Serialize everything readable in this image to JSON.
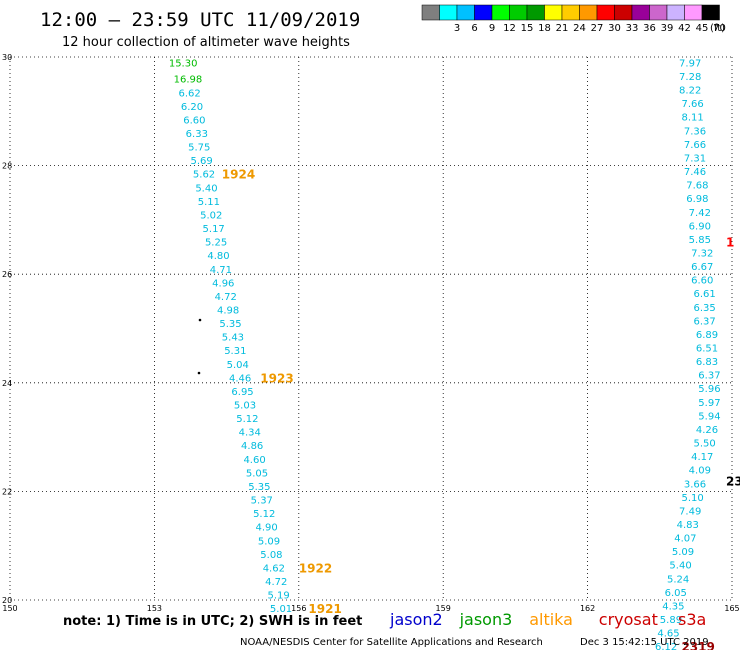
{
  "header": {
    "title": "12:00 – 23:59 UTC 11/09/2019",
    "subtitle": "12 hour collection of altimeter wave heights"
  },
  "color_scale": {
    "unit_label": "(ft)",
    "bins": [
      {
        "color": "#7f7f7f",
        "label": ""
      },
      {
        "color": "#00ffff",
        "label": "3"
      },
      {
        "color": "#00c0ff",
        "label": "6"
      },
      {
        "color": "#0000ff",
        "label": "9"
      },
      {
        "color": "#00ff00",
        "label": "12"
      },
      {
        "color": "#00cc00",
        "label": "15"
      },
      {
        "color": "#009900",
        "label": "18"
      },
      {
        "color": "#ffff00",
        "label": "21"
      },
      {
        "color": "#ffcc00",
        "label": "24"
      },
      {
        "color": "#ff9900",
        "label": "27"
      },
      {
        "color": "#ff0000",
        "label": "30"
      },
      {
        "color": "#cc0000",
        "label": "33"
      },
      {
        "color": "#990099",
        "label": "36"
      },
      {
        "color": "#cc66cc",
        "label": "39"
      },
      {
        "color": "#ccb3ff",
        "label": "42"
      },
      {
        "color": "#ff99ff",
        "label": "45"
      },
      {
        "color": "#000000",
        "label": "70"
      }
    ]
  },
  "axes": {
    "x_ticks": [
      {
        "value": 150,
        "label": "150"
      },
      {
        "value": 153,
        "label": "153"
      },
      {
        "value": 156,
        "label": "156"
      },
      {
        "value": 159,
        "label": "159"
      },
      {
        "value": 162,
        "label": "162"
      },
      {
        "value": 165,
        "label": "165"
      }
    ],
    "y_ticks": [
      {
        "value": 20,
        "label": "20"
      },
      {
        "value": 22,
        "label": "22"
      },
      {
        "value": 24,
        "label": "24"
      },
      {
        "value": 26,
        "label": "26"
      },
      {
        "value": 28,
        "label": "28"
      },
      {
        "value": 30,
        "label": "30"
      }
    ],
    "x_range": [
      150,
      165
    ],
    "y_range": [
      20,
      30
    ]
  },
  "tracks": [
    {
      "label": "",
      "label_color": "",
      "points": [
        {
          "lon": 153.3,
          "lat": 29.9,
          "value": "15.30",
          "color": "#00bb00"
        },
        {
          "lon": 153.4,
          "lat": 29.6,
          "value": "16.98",
          "color": "#00bb00"
        },
        {
          "lon": 153.5,
          "lat": 29.35,
          "value": "6.62",
          "color": "#00bbdd"
        },
        {
          "lon": 153.55,
          "lat": 29.1,
          "value": "6.20",
          "color": "#00bbdd"
        },
        {
          "lon": 153.6,
          "lat": 28.85,
          "value": "6.60",
          "color": "#00bbdd"
        },
        {
          "lon": 153.65,
          "lat": 28.6,
          "value": "6.33",
          "color": "#00bbdd"
        },
        {
          "lon": 153.7,
          "lat": 28.35,
          "value": "5.75",
          "color": "#00bbdd"
        },
        {
          "lon": 153.75,
          "lat": 28.1,
          "value": "5.69",
          "color": "#00bbdd"
        },
        {
          "lon": 153.8,
          "lat": 27.85,
          "value": "5.62",
          "color": "#00bbdd"
        }
      ]
    },
    {
      "label": "1924",
      "label_color": "#ee9900",
      "label_lon": 154.4,
      "label_lat": 27.85,
      "points": [
        {
          "lon": 153.85,
          "lat": 27.6,
          "value": "5.40",
          "color": "#00bbdd"
        },
        {
          "lon": 153.9,
          "lat": 27.35,
          "value": "5.11",
          "color": "#00bbdd"
        },
        {
          "lon": 153.95,
          "lat": 27.1,
          "value": "5.02",
          "color": "#00bbdd"
        },
        {
          "lon": 154.0,
          "lat": 26.85,
          "value": "5.17",
          "color": "#00bbdd"
        },
        {
          "lon": 154.05,
          "lat": 26.6,
          "value": "5.25",
          "color": "#00bbdd"
        },
        {
          "lon": 154.1,
          "lat": 26.35,
          "value": "4.80",
          "color": "#00bbdd"
        },
        {
          "lon": 154.15,
          "lat": 26.1,
          "value": "4.71",
          "color": "#00bbdd"
        },
        {
          "lon": 154.2,
          "lat": 25.85,
          "value": "4.96",
          "color": "#00bbdd"
        },
        {
          "lon": 154.25,
          "lat": 25.6,
          "value": "4.72",
          "color": "#00bbdd"
        },
        {
          "lon": 154.3,
          "lat": 25.35,
          "value": "4.98",
          "color": "#00bbdd"
        },
        {
          "lon": 154.35,
          "lat": 25.1,
          "value": "5.35",
          "color": "#00bbdd"
        },
        {
          "lon": 154.4,
          "lat": 24.85,
          "value": "5.43",
          "color": "#00bbdd"
        },
        {
          "lon": 154.45,
          "lat": 24.6,
          "value": "5.31",
          "color": "#00bbdd"
        },
        {
          "lon": 154.5,
          "lat": 24.35,
          "value": "5.04",
          "color": "#00bbdd"
        },
        {
          "lon": 154.55,
          "lat": 24.1,
          "value": "4.46",
          "color": "#00bbdd"
        }
      ]
    },
    {
      "label": "1923",
      "label_color": "#ee9900",
      "label_lon": 155.2,
      "label_lat": 24.1,
      "points": [
        {
          "lon": 154.6,
          "lat": 23.85,
          "value": "6.95",
          "color": "#00bbdd"
        },
        {
          "lon": 154.65,
          "lat": 23.6,
          "value": "5.03",
          "color": "#00bbdd"
        },
        {
          "lon": 154.7,
          "lat": 23.35,
          "value": "5.12",
          "color": "#00bbdd"
        },
        {
          "lon": 154.75,
          "lat": 23.1,
          "value": "4.34",
          "color": "#00bbdd"
        },
        {
          "lon": 154.8,
          "lat": 22.85,
          "value": "4.86",
          "color": "#00bbdd"
        },
        {
          "lon": 154.85,
          "lat": 22.6,
          "value": "4.60",
          "color": "#00bbdd"
        },
        {
          "lon": 154.9,
          "lat": 22.35,
          "value": "5.05",
          "color": "#00bbdd"
        },
        {
          "lon": 154.95,
          "lat": 22.1,
          "value": "5.35",
          "color": "#00bbdd"
        },
        {
          "lon": 155.0,
          "lat": 21.85,
          "value": "5.37",
          "color": "#00bbdd"
        },
        {
          "lon": 155.05,
          "lat": 21.6,
          "value": "5.12",
          "color": "#00bbdd"
        },
        {
          "lon": 155.1,
          "lat": 21.35,
          "value": "4.90",
          "color": "#00bbdd"
        },
        {
          "lon": 155.15,
          "lat": 21.1,
          "value": "5.09",
          "color": "#00bbdd"
        },
        {
          "lon": 155.2,
          "lat": 20.85,
          "value": "5.08",
          "color": "#00bbdd"
        },
        {
          "lon": 155.25,
          "lat": 20.6,
          "value": "4.62",
          "color": "#00bbdd"
        }
      ]
    },
    {
      "label": "1922",
      "label_color": "#ee9900",
      "label_lon": 156.0,
      "label_lat": 20.6,
      "points": [
        {
          "lon": 155.3,
          "lat": 20.35,
          "value": "4.72",
          "color": "#00bbdd"
        },
        {
          "lon": 155.35,
          "lat": 20.1,
          "value": "5.19",
          "color": "#00bbdd"
        },
        {
          "lon": 155.4,
          "lat": 19.85,
          "value": "5.01",
          "color": "#00bbdd"
        }
      ]
    },
    {
      "label": "1921",
      "label_color": "#ee9900",
      "label_lon": 156.2,
      "label_lat": 19.85,
      "points": []
    },
    {
      "label": "",
      "label_color": "",
      "points": [
        {
          "lon": 163.9,
          "lat": 29.9,
          "value": "7.97",
          "color": "#00bbdd"
        },
        {
          "lon": 163.9,
          "lat": 29.65,
          "value": "7.28",
          "color": "#00bbdd"
        },
        {
          "lon": 163.9,
          "lat": 29.4,
          "value": "8.22",
          "color": "#00bbdd"
        },
        {
          "lon": 163.95,
          "lat": 29.15,
          "value": "7.66",
          "color": "#00bbdd"
        },
        {
          "lon": 163.95,
          "lat": 28.9,
          "value": "8.11",
          "color": "#00bbdd"
        },
        {
          "lon": 164.0,
          "lat": 28.65,
          "value": "7.36",
          "color": "#00bbdd"
        },
        {
          "lon": 164.0,
          "lat": 28.4,
          "value": "7.66",
          "color": "#00bbdd"
        },
        {
          "lon": 164.0,
          "lat": 28.15,
          "value": "7.31",
          "color": "#00bbdd"
        },
        {
          "lon": 164.0,
          "lat": 27.9,
          "value": "7.46",
          "color": "#00bbdd"
        },
        {
          "lon": 164.05,
          "lat": 27.65,
          "value": "7.68",
          "color": "#00bbdd"
        },
        {
          "lon": 164.05,
          "lat": 27.4,
          "value": "6.98",
          "color": "#00bbdd"
        },
        {
          "lon": 164.1,
          "lat": 27.15,
          "value": "7.42",
          "color": "#00bbdd"
        },
        {
          "lon": 164.1,
          "lat": 26.9,
          "value": "6.90",
          "color": "#00bbdd"
        },
        {
          "lon": 164.1,
          "lat": 26.65,
          "value": "5.85",
          "color": "#00bbdd"
        },
        {
          "lon": 164.15,
          "lat": 26.4,
          "value": "7.32",
          "color": "#00bbdd"
        },
        {
          "lon": 164.15,
          "lat": 26.15,
          "value": "6.67",
          "color": "#00bbdd"
        },
        {
          "lon": 164.15,
          "lat": 25.9,
          "value": "6.60",
          "color": "#00bbdd"
        },
        {
          "lon": 164.2,
          "lat": 25.65,
          "value": "6.61",
          "color": "#00bbdd"
        },
        {
          "lon": 164.2,
          "lat": 25.4,
          "value": "6.35",
          "color": "#00bbdd"
        },
        {
          "lon": 164.2,
          "lat": 25.15,
          "value": "6.37",
          "color": "#00bbdd"
        },
        {
          "lon": 164.25,
          "lat": 24.9,
          "value": "6.89",
          "color": "#00bbdd"
        },
        {
          "lon": 164.25,
          "lat": 24.65,
          "value": "6.51",
          "color": "#00bbdd"
        },
        {
          "lon": 164.25,
          "lat": 24.4,
          "value": "6.83",
          "color": "#00bbdd"
        },
        {
          "lon": 164.3,
          "lat": 24.15,
          "value": "6.37",
          "color": "#00bbdd"
        },
        {
          "lon": 164.3,
          "lat": 23.9,
          "value": "5.96",
          "color": "#00bbdd"
        },
        {
          "lon": 164.3,
          "lat": 23.65,
          "value": "5.97",
          "color": "#00bbdd"
        },
        {
          "lon": 164.3,
          "lat": 23.4,
          "value": "5.94",
          "color": "#00bbdd"
        },
        {
          "lon": 164.25,
          "lat": 23.15,
          "value": "4.26",
          "color": "#00bbdd"
        },
        {
          "lon": 164.2,
          "lat": 22.9,
          "value": "5.50",
          "color": "#00bbdd"
        },
        {
          "lon": 164.15,
          "lat": 22.65,
          "value": "4.17",
          "color": "#00bbdd"
        },
        {
          "lon": 164.1,
          "lat": 22.4,
          "value": "4.09",
          "color": "#00bbdd"
        },
        {
          "lon": 164.0,
          "lat": 22.15,
          "value": "3.66",
          "color": "#00bbdd"
        },
        {
          "lon": 163.95,
          "lat": 21.9,
          "value": "5.10",
          "color": "#00bbdd"
        },
        {
          "lon": 163.9,
          "lat": 21.65,
          "value": "7.49",
          "color": "#00bbdd"
        },
        {
          "lon": 163.85,
          "lat": 21.4,
          "value": "4.83",
          "color": "#00bbdd"
        },
        {
          "lon": 163.8,
          "lat": 21.15,
          "value": "4.07",
          "color": "#00bbdd"
        },
        {
          "lon": 163.75,
          "lat": 20.9,
          "value": "5.09",
          "color": "#00bbdd"
        },
        {
          "lon": 163.7,
          "lat": 20.65,
          "value": "5.40",
          "color": "#00bbdd"
        },
        {
          "lon": 163.65,
          "lat": 20.4,
          "value": "5.24",
          "color": "#00bbdd"
        },
        {
          "lon": 163.6,
          "lat": 20.15,
          "value": "6.05",
          "color": "#00bbdd"
        },
        {
          "lon": 163.55,
          "lat": 19.9,
          "value": "4.35",
          "color": "#00bbdd"
        },
        {
          "lon": 163.5,
          "lat": 19.65,
          "value": "5.89",
          "color": "#00bbdd"
        },
        {
          "lon": 163.45,
          "lat": 19.4,
          "value": "4.65",
          "color": "#00bbdd"
        },
        {
          "lon": 163.4,
          "lat": 19.15,
          "value": "6.12",
          "color": "#00bbdd"
        }
      ]
    },
    {
      "label": "2319",
      "label_color": "#990000",
      "label_lon": 163.95,
      "label_lat": 19.15,
      "points": []
    }
  ],
  "right_edge_labels": [
    {
      "text": "1",
      "color": "#ff0000",
      "lat": 26.6
    },
    {
      "text": "23",
      "color": "#000000",
      "lat": 22.2
    }
  ],
  "footer": {
    "note": "note: 1) Time is in UTC; 2) SWH is in feet",
    "missions": [
      {
        "name": "jason2",
        "color": "#0000cc"
      },
      {
        "name": "jason3",
        "color": "#009900"
      },
      {
        "name": "altika",
        "color": "#ff9900"
      },
      {
        "name": "cryosat",
        "color": "#cc0000"
      },
      {
        "name": "s3a",
        "color": "#cc0000"
      }
    ],
    "credit": "NOAA/NESDIS Center for Satellite Applications and Research",
    "generated": "Dec  3 15:42:15 UTC 2019"
  }
}
